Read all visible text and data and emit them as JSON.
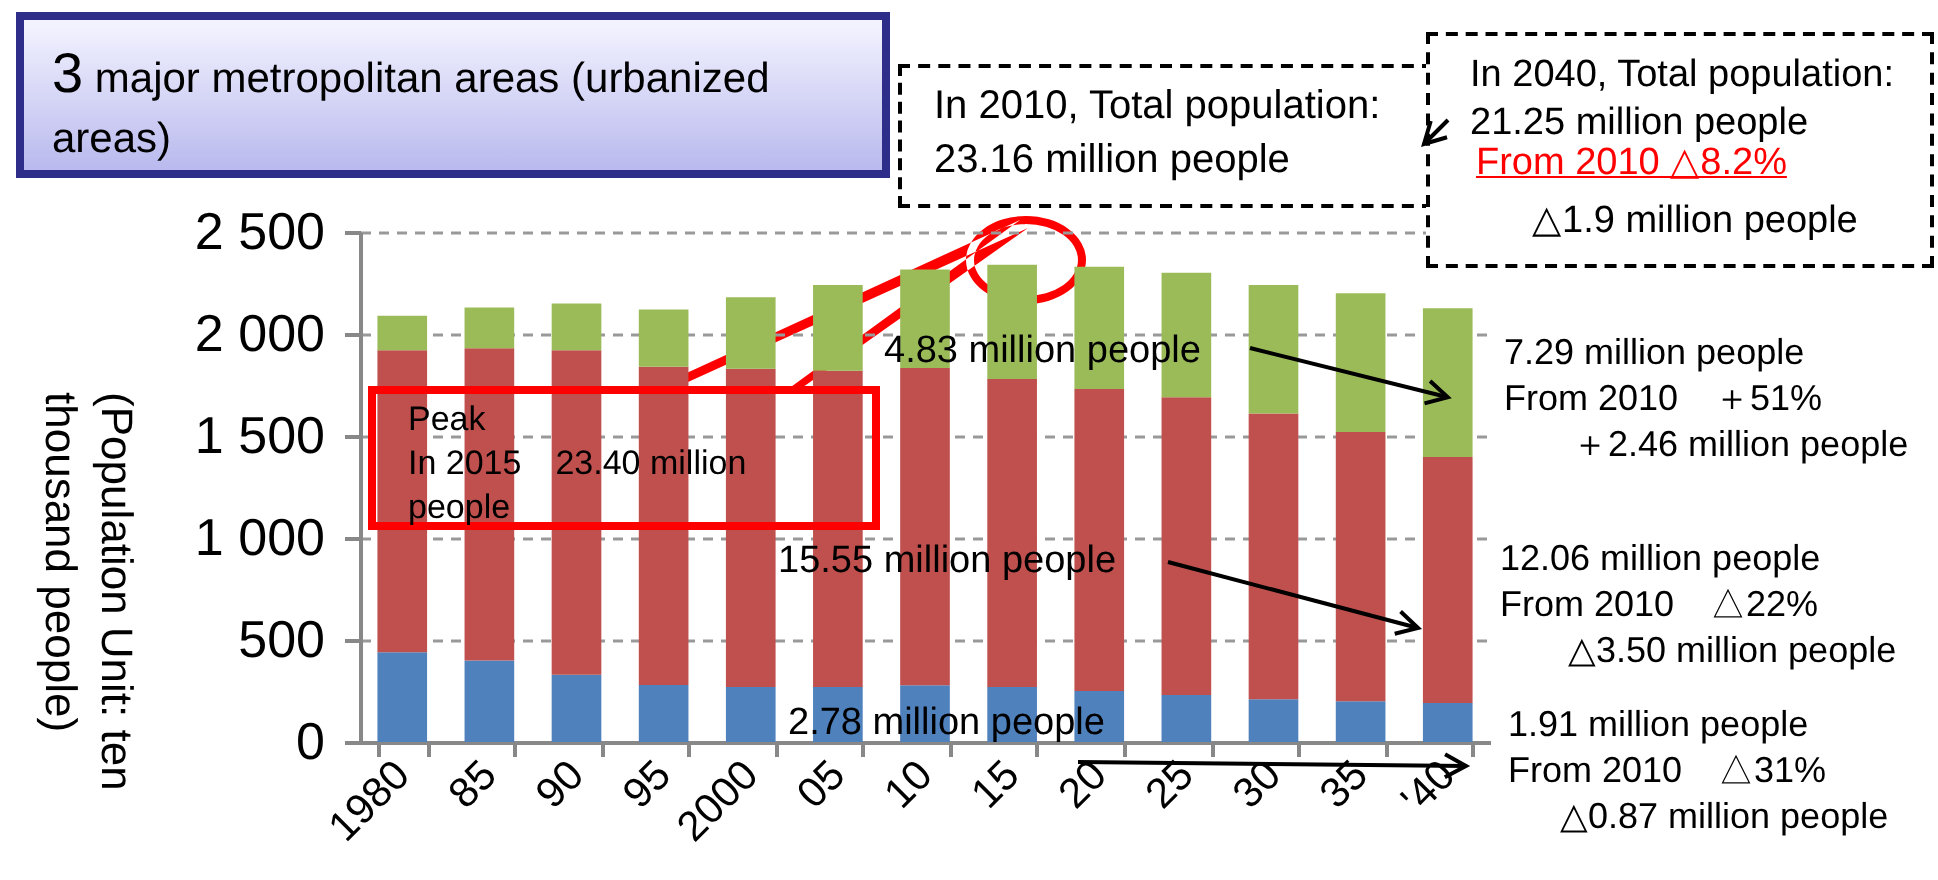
{
  "chart_data": {
    "type": "bar",
    "stacked": true,
    "title": "3 major metropolitan areas (urbanized areas)",
    "ylabel": "(Population Unit: ten thousand people)",
    "categories": [
      "1980",
      "85",
      "90",
      "95",
      "2000",
      "05",
      "10",
      "15",
      "20",
      "25",
      "30",
      "35",
      "'40"
    ],
    "series": [
      {
        "color": "#4f81bd",
        "values": [
          440,
          400,
          330,
          280,
          270,
          270,
          278,
          270,
          250,
          230,
          210,
          200,
          191
        ]
      },
      {
        "color": "#c0504d",
        "values": [
          1480,
          1530,
          1590,
          1560,
          1560,
          1550,
          1555,
          1510,
          1480,
          1460,
          1400,
          1320,
          1206
        ]
      },
      {
        "color": "#9bbb59",
        "values": [
          170,
          200,
          230,
          280,
          350,
          420,
          483,
          560,
          600,
          610,
          630,
          680,
          729
        ]
      }
    ],
    "ylim": [
      0,
      2500
    ],
    "yticks": [
      0,
      500,
      {
        "value": 1000,
        "label": "1 000"
      },
      {
        "value": 1500,
        "label": "1 500"
      },
      {
        "value": 2000,
        "label": "2 000"
      },
      {
        "value": 2500,
        "label": "2 500"
      }
    ],
    "grid": "y",
    "annotations": [
      "In 2010, Total population: 23.16 million people",
      "In 2040, Total population: 21.25 million people",
      "From 2010 △8.2%",
      "△1.9 million people",
      "Peak",
      "In 2015　23.40 million people",
      {
        "text": "4.83 million people",
        "x": "'40",
        "y": 1690
      },
      "15.55 million people",
      "2.78 million people",
      "7.29 million people",
      "From 2010　＋51%",
      "＋2.46 million people",
      "12.06 million people",
      "From 2010　△22%",
      "△3.50 million people",
      "1.91 million people",
      "From 2010　△31%",
      "△0.87 million people"
    ]
  }
}
